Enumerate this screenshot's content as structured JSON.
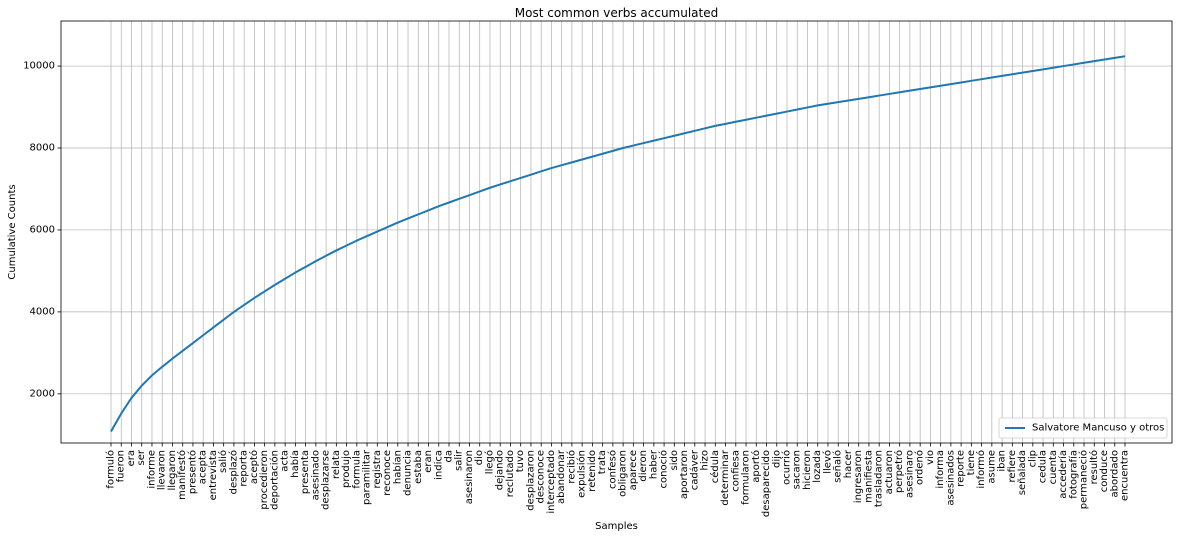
{
  "chart_data": {
    "type": "line",
    "title": "Most common verbs accumulated",
    "xlabel": "Samples",
    "ylabel": "Cumulative Counts",
    "ylim": [
      800,
      11100
    ],
    "yticks": [
      2000,
      4000,
      6000,
      8000,
      10000
    ],
    "grid": true,
    "legend_position": "lower-right",
    "colors": {
      "line": "#1f77b4",
      "grid": "#b0b0b0"
    },
    "categories": [
      "formuló",
      "fueron",
      "era",
      "ser",
      "informe",
      "llevaron",
      "llegaron",
      "manifestó",
      "presentó",
      "acepta",
      "entrevista",
      "salió",
      "desplazó",
      "reporta",
      "aceptó",
      "procedieron",
      "deportación",
      "acta",
      "había",
      "presenta",
      "asesinado",
      "desplazarse",
      "relata",
      "produjo",
      "formula",
      "paramilitar",
      "registra",
      "reconoce",
      "habían",
      "denuncia",
      "estaba",
      "eran",
      "indica",
      "da",
      "salir",
      "asesinaron",
      "dio",
      "llegó",
      "dejando",
      "reclutado",
      "tuvo",
      "desplazaron",
      "desconoce",
      "interceptado",
      "abandonar",
      "recibió",
      "expulsión",
      "retenido",
      "trata",
      "confesó",
      "obligaron",
      "aparece",
      "dieron",
      "haber",
      "conoció",
      "sido",
      "aportaron",
      "cadáver",
      "hizo",
      "cédula",
      "determinar",
      "confiesa",
      "formularon",
      "aportó",
      "desaparecido",
      "dijo",
      "ocurrió",
      "sacaron",
      "hicieron",
      "lozada",
      "llevó",
      "señaló",
      "hacer",
      "ingresaron",
      "manifiesta",
      "trasladaron",
      "actuaron",
      "perpetró",
      "asesinaro",
      "ordenó",
      "vio",
      "informa",
      "asesinados",
      "reporte",
      "tiene",
      "informó",
      "asume",
      "iban",
      "refiere",
      "señalada",
      "clip",
      "cedula",
      "cuenta",
      "accedería",
      "fotografía",
      "permaneció",
      "resultó",
      "conduce",
      "abordado",
      "encuentra"
    ],
    "series": [
      {
        "name": "Salvatore Mancuso y otros",
        "values": [
          1080,
          1520,
          1900,
          2200,
          2450,
          2660,
          2860,
          3050,
          3240,
          3430,
          3620,
          3810,
          4000,
          4170,
          4340,
          4500,
          4660,
          4810,
          4960,
          5100,
          5240,
          5370,
          5500,
          5620,
          5740,
          5850,
          5960,
          6070,
          6180,
          6280,
          6380,
          6480,
          6580,
          6670,
          6760,
          6850,
          6940,
          7030,
          7110,
          7190,
          7270,
          7350,
          7430,
          7510,
          7580,
          7650,
          7720,
          7790,
          7860,
          7930,
          8000,
          8060,
          8120,
          8180,
          8240,
          8300,
          8360,
          8420,
          8480,
          8540,
          8590,
          8640,
          8690,
          8740,
          8790,
          8840,
          8890,
          8940,
          8990,
          9040,
          9080,
          9120,
          9160,
          9200,
          9240,
          9280,
          9320,
          9360,
          9400,
          9440,
          9480,
          9520,
          9560,
          9600,
          9640,
          9680,
          9720,
          9760,
          9800,
          9840,
          9880,
          9920,
          9960,
          10000,
          10040,
          10080,
          10120,
          10160,
          10200,
          10240
        ]
      }
    ]
  }
}
